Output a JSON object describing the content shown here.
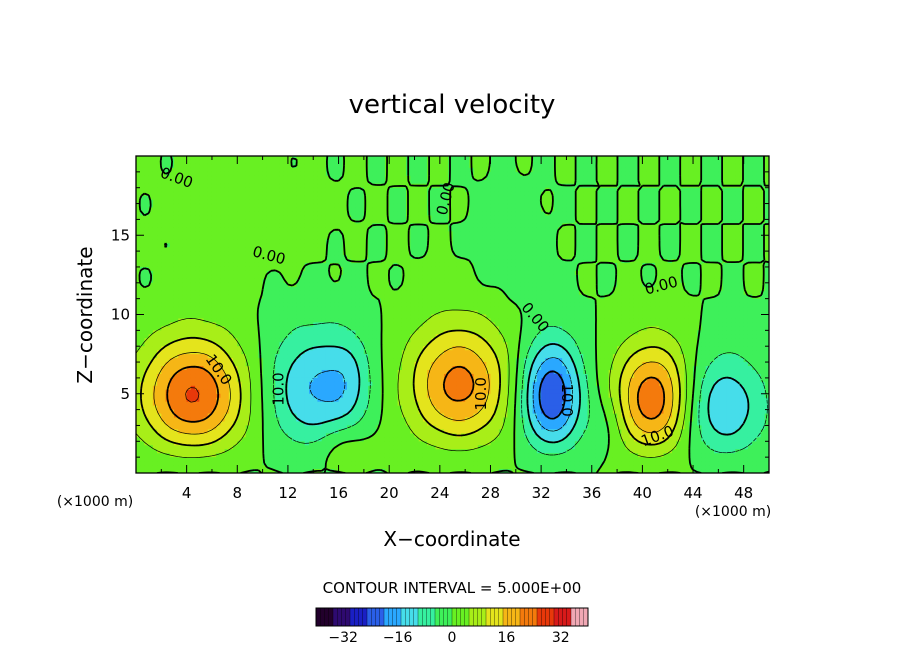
{
  "chart_data": {
    "type": "heatmap",
    "title": "vertical velocity",
    "xlabel": "X−coordinate",
    "ylabel": "Z−coordinate",
    "x_unit": "(×1000 m)",
    "y_unit": "(×1000 m)",
    "xlim": [
      0,
      50
    ],
    "ylim": [
      0,
      20
    ],
    "x_ticks": [
      "4",
      "8",
      "12",
      "16",
      "20",
      "24",
      "28",
      "32",
      "36",
      "40",
      "44",
      "48"
    ],
    "y_ticks": [
      "5",
      "10",
      "15"
    ],
    "contour_interval_text": "CONTOUR INTERVAL = 5.000E+00",
    "contour_labels": [
      {
        "text": "0.00",
        "x": 3.2,
        "y": 18.6,
        "angle": 20
      },
      {
        "text": "0.00",
        "x": 10.5,
        "y": 13.7,
        "angle": 15
      },
      {
        "text": "0.00",
        "x": 24.5,
        "y": 17.3,
        "angle": -75
      },
      {
        "text": "0.00",
        "x": 41.5,
        "y": 11.8,
        "angle": -15
      },
      {
        "text": "0.00",
        "x": 31.5,
        "y": 9.8,
        "angle": 50
      },
      {
        "text": "10.0",
        "x": 6.5,
        "y": 6.5,
        "angle": 55
      },
      {
        "text": "10.0",
        "x": 11.3,
        "y": 5.3,
        "angle": -90
      },
      {
        "text": "10.0",
        "x": 27.3,
        "y": 5.0,
        "angle": -90
      },
      {
        "text": "10.0",
        "x": 34.0,
        "y": 4.6,
        "angle": 90
      },
      {
        "text": "10.0",
        "x": 41.2,
        "y": 2.3,
        "angle": -20
      }
    ],
    "cells": [
      {
        "x": 4.5,
        "z": 4.8,
        "sx": 3.0,
        "sz": 2.7,
        "w": 26
      },
      {
        "x": 25.5,
        "z": 5.5,
        "sx": 2.9,
        "sz": 2.8,
        "w": 22
      },
      {
        "x": 41.0,
        "z": 4.5,
        "sx": 2.3,
        "sz": 2.6,
        "w": 26
      },
      {
        "x": 13.8,
        "z": 5.2,
        "sx": 2.6,
        "sz": 2.8,
        "w": -15
      },
      {
        "x": 16.8,
        "z": 5.8,
        "sx": 1.4,
        "sz": 2.2,
        "w": -7
      },
      {
        "x": 32.8,
        "z": 4.8,
        "sx": 1.7,
        "sz": 2.5,
        "w": -26
      },
      {
        "x": 46.0,
        "z": 4.0,
        "sx": 2.6,
        "sz": 2.5,
        "w": -16
      },
      {
        "x": 37.2,
        "z": 3.0,
        "sx": 1.2,
        "sz": 1.6,
        "w": -5
      },
      {
        "x": 16.5,
        "z": 1.2,
        "sx": 1.5,
        "sz": 1.2,
        "w": 7
      },
      {
        "x": 29.5,
        "z": 14.5,
        "sx": 1.5,
        "sz": 2.2,
        "w": -4
      },
      {
        "x": 8.0,
        "z": 16.5,
        "sx": 4.0,
        "sz": 2.5,
        "w": 2
      }
    ],
    "colorbar": {
      "min": -40,
      "max": 40,
      "ticks": [
        {
          "value": -32,
          "label": "−32"
        },
        {
          "value": -16,
          "label": "−16"
        },
        {
          "value": 0,
          "label": "0"
        },
        {
          "value": 16,
          "label": "16"
        },
        {
          "value": 32,
          "label": "32"
        }
      ],
      "colors": [
        "#22002c",
        "#2e0a70",
        "#1a1fc4",
        "#2a5fe8",
        "#2aa8ff",
        "#46ddea",
        "#36f0a0",
        "#3ef05a",
        "#68f022",
        "#a8ee18",
        "#e4e41c",
        "#f6b616",
        "#f47a0c",
        "#e8380a",
        "#d81a1a",
        "#f0a8b4"
      ]
    }
  }
}
